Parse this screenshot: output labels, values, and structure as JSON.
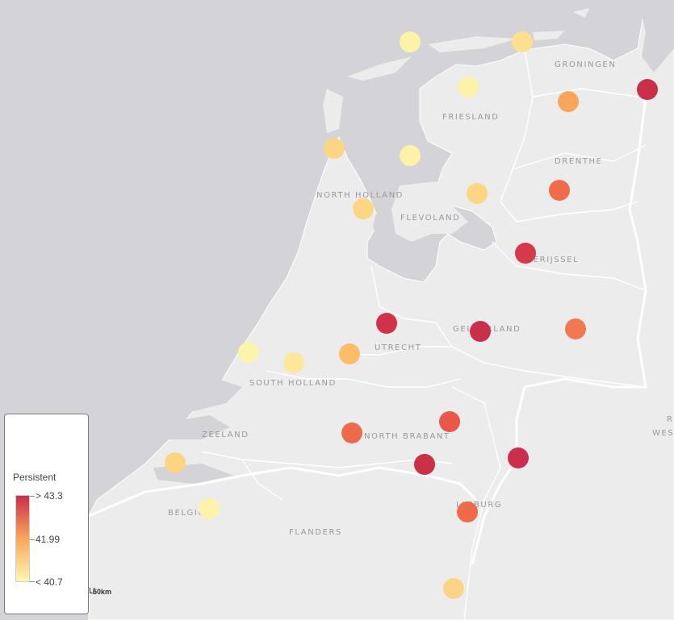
{
  "map": {
    "region_labels": {
      "groningen": "GRONINGEN",
      "friesland": "FRIESLAND",
      "drenthe": "DRENTHE",
      "north_holland": "NORTH HOLLAND",
      "flevoland": "FLEVOLAND",
      "overijssel": "OVERIJSSEL",
      "gelderland": "GELDERLAND",
      "utrecht": "UTRECHT",
      "south_holland": "SOUTH HOLLAND",
      "zeeland": "ZEELAND",
      "north_brabant": "NORTH BRABANT",
      "limburg": "LIMBURG",
      "belgium": "BELGIUM",
      "flanders": "FLANDERS",
      "edge_r": "R",
      "edge_wes": "WES"
    },
    "markers": [
      {
        "level": 0.05,
        "color": "#fdf2a6"
      },
      {
        "level": 0.25,
        "color": "#fde08e"
      },
      {
        "level": 0.08,
        "color": "#fdf3a8"
      },
      {
        "level": 0.95,
        "color": "#c8304a"
      },
      {
        "level": 0.6,
        "color": "#f9a65a"
      },
      {
        "level": 0.3,
        "color": "#fcd584"
      },
      {
        "level": 0.05,
        "color": "#fdf2a6"
      },
      {
        "level": 0.35,
        "color": "#fcd682"
      },
      {
        "level": 0.75,
        "color": "#ee6c4a"
      },
      {
        "level": 0.3,
        "color": "#fcd682"
      },
      {
        "level": 0.9,
        "color": "#d43a4a"
      },
      {
        "level": 0.9,
        "color": "#d03349"
      },
      {
        "level": 0.95,
        "color": "#c82f4b"
      },
      {
        "level": 0.7,
        "color": "#f1784f"
      },
      {
        "level": 0.05,
        "color": "#fdf4ac"
      },
      {
        "level": 0.15,
        "color": "#fde79a"
      },
      {
        "level": 0.5,
        "color": "#fbbd6a"
      },
      {
        "level": 0.8,
        "color": "#e8574a"
      },
      {
        "level": 0.75,
        "color": "#ee6a4c"
      },
      {
        "level": 0.9,
        "color": "#cb3049"
      },
      {
        "level": 0.95,
        "color": "#c92f4b"
      },
      {
        "level": 0.3,
        "color": "#fcd582"
      },
      {
        "level": 0.05,
        "color": "#fdf3ab"
      },
      {
        "level": 0.75,
        "color": "#ee6a48"
      },
      {
        "level": 0.35,
        "color": "#fcd487"
      }
    ]
  },
  "legend": {
    "title": "Persistent",
    "max_label": "> 43.3",
    "mid_label": "41.99",
    "min_label": "< 40.7",
    "colors": {
      "high": "#c8304a",
      "mid": "#f9a65a",
      "low": "#fff7b0"
    }
  },
  "scalebar": {
    "label": "50km"
  }
}
